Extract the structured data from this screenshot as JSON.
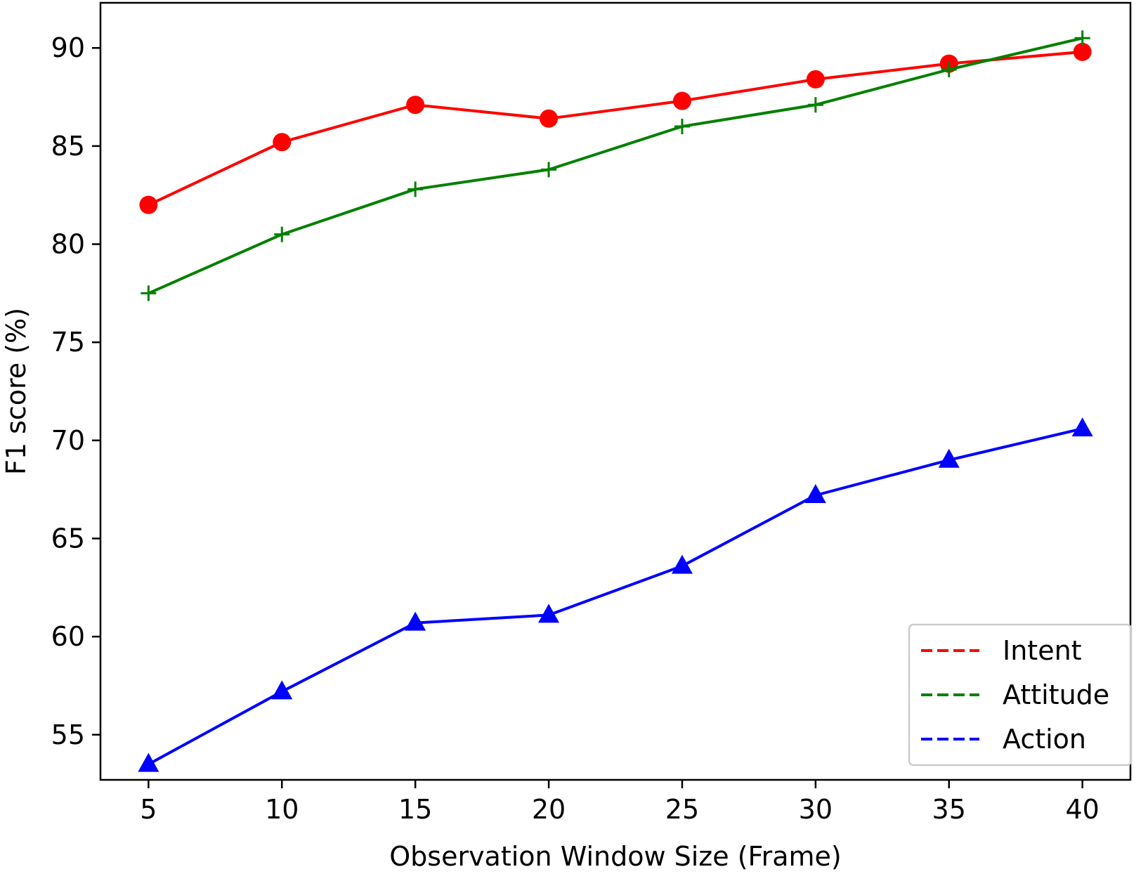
{
  "chart_data": {
    "type": "line",
    "x": [
      5,
      10,
      15,
      20,
      25,
      30,
      35,
      40
    ],
    "xticks": [
      5,
      10,
      15,
      20,
      25,
      30,
      35,
      40
    ],
    "yticks": [
      55,
      60,
      65,
      70,
      75,
      80,
      85,
      90
    ],
    "xlim": [
      3.2,
      41.8
    ],
    "ylim": [
      52.7,
      92.3
    ],
    "xlabel": "Observation Window Size (Frame)",
    "ylabel": "F1 score (%)",
    "title": "",
    "grid": false,
    "legend_position": "lower-right",
    "series": [
      {
        "name": "Intent",
        "color": "#ff0000",
        "marker": "circle",
        "values": [
          82.0,
          85.2,
          87.1,
          86.4,
          87.3,
          88.4,
          89.2,
          89.8
        ]
      },
      {
        "name": "Attitude",
        "color": "#008000",
        "marker": "plus",
        "values": [
          77.5,
          80.5,
          82.8,
          83.8,
          86.0,
          87.1,
          88.9,
          90.5
        ]
      },
      {
        "name": "Action",
        "color": "#0000ff",
        "marker": "triangle",
        "values": [
          53.5,
          57.2,
          60.7,
          61.1,
          63.6,
          67.2,
          69.0,
          70.6
        ]
      }
    ]
  }
}
